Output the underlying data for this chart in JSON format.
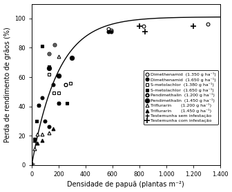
{
  "title": "",
  "xlabel": "Densidade de papuã (plantas m⁻²)",
  "ylabel": "Perda de rendimento de grãos (%)",
  "xlim": [
    0,
    1400
  ],
  "ylim": [
    0,
    110
  ],
  "xticks": [
    "0",
    "200",
    "400",
    "600",
    "800",
    "1.000",
    "1.200",
    "1.400"
  ],
  "xtick_vals": [
    0,
    200,
    400,
    600,
    800,
    1000,
    1200,
    1400
  ],
  "yticks": [
    0,
    20,
    40,
    60,
    80,
    100
  ],
  "curve_params": {
    "a": 101.08,
    "b": 0.00505
  },
  "series": [
    {
      "label": "Dimethenamid  (1.350 g ha⁻¹)",
      "marker": "o",
      "facecolor": "white",
      "edgecolor": "black",
      "ms": 3.5,
      "mew": 0.8,
      "x": [
        570,
        590,
        830,
        1310
      ],
      "y": [
        93,
        92,
        95,
        96
      ]
    },
    {
      "label": "Dimethenamid  (1.650 g ha⁻¹)",
      "marker": "o",
      "facecolor": "black",
      "edgecolor": "black",
      "ms": 3.5,
      "mew": 0.8,
      "x": [
        50,
        75,
        100,
        130,
        160,
        200,
        250,
        570,
        590
      ],
      "y": [
        41,
        46,
        30,
        26,
        55,
        42,
        55,
        91,
        91
      ]
    },
    {
      "label": "S-metolachlor  (1.380 g ha⁻¹)",
      "marker": "s",
      "facecolor": "white",
      "edgecolor": "black",
      "ms": 3.5,
      "mew": 0.8,
      "x": [
        130,
        165,
        200,
        250,
        290
      ],
      "y": [
        62,
        49,
        49,
        55,
        56
      ]
    },
    {
      "label": "S-metolachlor  (1.650 g ha⁻¹)",
      "marker": "s",
      "facecolor": "black",
      "edgecolor": "black",
      "ms": 3.5,
      "mew": 0.8,
      "x": [
        20,
        35,
        50,
        80,
        130,
        200,
        260
      ],
      "y": [
        18,
        30,
        41,
        81,
        67,
        42,
        42
      ]
    },
    {
      "label": "Pendimethalin  (1.200 g ha⁻¹)",
      "marker": "o",
      "facecolor": "white",
      "edgecolor": "black",
      "ms": 3.5,
      "mew": 0.8,
      "extra_dot": true,
      "x": [
        130,
        170
      ],
      "y": [
        76,
        82
      ]
    },
    {
      "label": "Pendimethalin  (1.450 g ha⁻¹)",
      "marker": "o",
      "facecolor": "black",
      "edgecolor": "black",
      "ms": 3.5,
      "mew": 0.8,
      "extra_dot": true,
      "x": [
        130,
        200,
        300
      ],
      "y": [
        66,
        61,
        73
      ]
    },
    {
      "label": "Triflurarin       (1.200 g ha⁻¹)",
      "marker": "^",
      "facecolor": "white",
      "edgecolor": "black",
      "ms": 3.5,
      "mew": 0.8,
      "x": [
        20,
        40,
        75,
        130,
        200
      ],
      "y": [
        11,
        21,
        21,
        22,
        74
      ]
    },
    {
      "label": "Triflurarin       (1.450 g ha⁻¹)",
      "marker": "^",
      "facecolor": "black",
      "edgecolor": "black",
      "ms": 3.5,
      "mew": 0.8,
      "x": [
        20,
        40,
        75,
        160
      ],
      "y": [
        17,
        15,
        17,
        25
      ]
    },
    {
      "label": "Testemunha sem infestação",
      "marker": "+",
      "facecolor": "black",
      "edgecolor": "black",
      "ms": 5.0,
      "mew": 1.0,
      "x": [
        5
      ],
      "y": [
        1
      ]
    },
    {
      "label": "Testemunha com infestação",
      "marker": "+",
      "facecolor": "black",
      "edgecolor": "black",
      "ms": 5.5,
      "mew": 1.2,
      "x": [
        800,
        840,
        1200
      ],
      "y": [
        95,
        91,
        95
      ]
    }
  ],
  "background_color": "#ffffff",
  "legend_fontsize": 4.5,
  "axis_fontsize": 7.0,
  "tick_fontsize": 6.0
}
